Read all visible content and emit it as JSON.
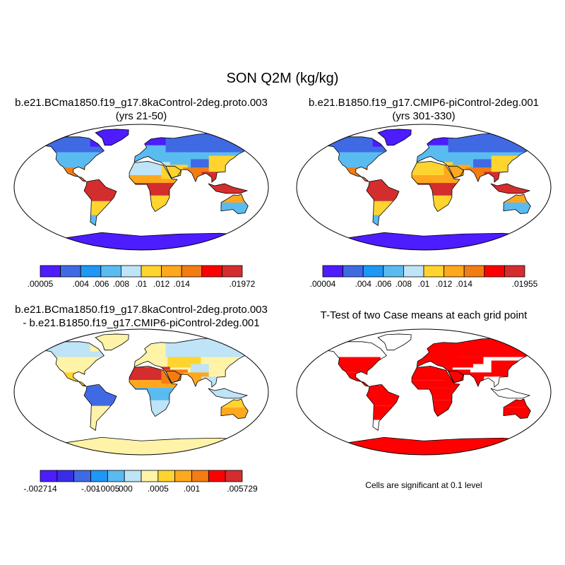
{
  "title": "SON Q2M (kg/kg)",
  "panels": [
    {
      "line1": "b.e21.BCma1850.f19_g17.8kaControl-2deg.proto.003",
      "line2": "(yrs 21-50)",
      "colorbar": {
        "colors": [
          "#4d1cff",
          "#3f6ae4",
          "#1d98f7",
          "#5abbf0",
          "#bfe3f7",
          "#ffd42f",
          "#ffa81e",
          "#f37d12",
          "#ff0000",
          "#d42d2d"
        ],
        "labels": [
          ".00005",
          "",
          ".004",
          ".006",
          ".008",
          ".01",
          ".012",
          ".014",
          "",
          ".01972"
        ]
      },
      "fields": {
        "default": "#5abbf0",
        "polar": "#4d1cff",
        "canada": "#3f6ae4",
        "usa": "#5abbf0",
        "mexico": "#f37d12",
        "amazon": "#d42d2d",
        "south_america_south": "#ffd42f",
        "patagonia": "#5abbf0",
        "greenland": "#4d1cff",
        "europe": "#5abbf0",
        "siberia": "#3f6ae4",
        "central_asia": "#5abbf0",
        "tibet": "#3f6ae4",
        "sahara": "#bfe3f7",
        "sahel": "#ffa81e",
        "central_africa": "#d42d2d",
        "southern_africa": "#ffd42f",
        "arabia": "#ffd42f",
        "india": "#f37d12",
        "southeast_asia": "#d42d2d",
        "china": "#ffd42f",
        "australia_interior": "#5abbf0",
        "australia_north": "#ffa81e",
        "antarctica": "#4d1cff"
      }
    },
    {
      "line1": "b.e21.B1850.f19_g17.CMIP6-piControl-2deg.001",
      "line2": "(yrs 301-330)",
      "colorbar": {
        "colors": [
          "#4d1cff",
          "#3f6ae4",
          "#1d98f7",
          "#5abbf0",
          "#bfe3f7",
          "#ffd42f",
          "#ffa81e",
          "#f37d12",
          "#ff0000",
          "#d42d2d"
        ],
        "labels": [
          ".00004",
          "",
          ".004",
          ".006",
          ".008",
          ".01",
          ".012",
          ".014",
          "",
          ".01955"
        ]
      },
      "fields": {
        "default": "#5abbf0",
        "polar": "#4d1cff",
        "canada": "#3f6ae4",
        "usa": "#5abbf0",
        "mexico": "#f37d12",
        "amazon": "#d42d2d",
        "south_america_south": "#ffd42f",
        "patagonia": "#5abbf0",
        "greenland": "#4d1cff",
        "europe": "#5abbf0",
        "siberia": "#3f6ae4",
        "central_asia": "#5abbf0",
        "tibet": "#3f6ae4",
        "sahara": "#ffd42f",
        "sahel": "#ffa81e",
        "central_africa": "#d42d2d",
        "southern_africa": "#ffd42f",
        "arabia": "#ffa81e",
        "india": "#f37d12",
        "southeast_asia": "#d42d2d",
        "china": "#ffd42f",
        "australia_interior": "#5abbf0",
        "australia_north": "#ffa81e",
        "antarctica": "#4d1cff"
      }
    },
    {
      "line1": "b.e21.BCma1850.f19_g17.8kaControl-2deg.proto.003",
      "line2": "- b.e21.B1850.f19_g17.CMIP6-piControl-2deg.001",
      "colorbar": {
        "colors": [
          "#4d1cff",
          "#3a2de8",
          "#3f6ae4",
          "#1d98f7",
          "#5abbf0",
          "#bfe3f7",
          "#fff3a8",
          "#ffd42f",
          "#ffa81e",
          "#f37d12",
          "#ff0000",
          "#d42d2d"
        ],
        "labels": [
          "-.002714",
          "",
          "",
          "-.001",
          "-.0005",
          ".000",
          "",
          ".0005",
          "",
          ".001",
          "",
          ".005729"
        ]
      },
      "fields": {
        "default": "#fff3a8",
        "polar": "#fff3a8",
        "canada": "#bfe3f7",
        "usa": "#fff3a8",
        "mexico": "#ffd42f",
        "amazon": "#3f6ae4",
        "south_america_south": "#fff3a8",
        "patagonia": "#fff3a8",
        "greenland": "#fff3a8",
        "europe": "#fff3a8",
        "siberia": "#bfe3f7",
        "central_asia": "#ffd42f",
        "tibet": "#bfe3f7",
        "sahara": "#d42d2d",
        "sahel": "#ffa81e",
        "central_africa": "#5abbf0",
        "southern_africa": "#bfe3f7",
        "arabia": "#f37d12",
        "india": "#ffa81e",
        "southeast_asia": "#bfe3f7",
        "china": "#fff3a8",
        "australia_interior": "#ffa81e",
        "australia_north": "#ffd42f",
        "antarctica": "#fff3a8"
      }
    },
    {
      "line1": "T-Test of two Case means at each grid point",
      "line2": "",
      "significance_color": "#ff0000",
      "fields": {
        "default": "#ffffff",
        "polar": "#ff0000",
        "canada": "#ffffff",
        "usa": "#ff0000",
        "mexico": "#ff0000",
        "amazon": "#ff0000",
        "south_america_south": "#ff0000",
        "patagonia": "#ffffff",
        "greenland": "#ffffff",
        "europe": "#ff0000",
        "siberia": "#ff0000",
        "central_asia": "#ff0000",
        "tibet": "#ffffff",
        "sahara": "#ff0000",
        "sahel": "#ff0000",
        "central_africa": "#ff0000",
        "southern_africa": "#ff0000",
        "arabia": "#ff0000",
        "india": "#ff0000",
        "southeast_asia": "#ffffff",
        "china": "#ff0000",
        "australia_interior": "#ff0000",
        "australia_north": "#ff0000",
        "antarctica": "#ff0000"
      }
    }
  ],
  "significance_note": "Cells are significant at 0.1 level",
  "projection": "robinson-style ellipse",
  "land_outline_color": "#000000"
}
